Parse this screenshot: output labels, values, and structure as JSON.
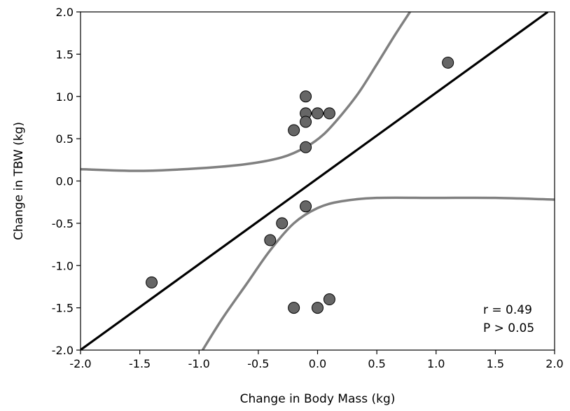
{
  "chart_data": {
    "type": "scatter",
    "title": "",
    "xlabel": "Change in Body Mass (kg)",
    "ylabel": "Change in TBW (kg)",
    "xlim": [
      -2.0,
      2.0
    ],
    "ylim": [
      -2.0,
      2.0
    ],
    "x_ticks": [
      "-2.0",
      "-1.5",
      "-1.0",
      "-0.5",
      "0.0",
      "0.5",
      "1.0",
      "1.5",
      "2.0"
    ],
    "y_ticks": [
      "2.0",
      "1.5",
      "1.0",
      "0.5",
      "0.0",
      "-0.5",
      "-1.0",
      "-1.5",
      "-2.0"
    ],
    "grid": false,
    "points": [
      {
        "x": -1.4,
        "y": -1.2
      },
      {
        "x": -0.4,
        "y": -0.7
      },
      {
        "x": -0.3,
        "y": -0.5
      },
      {
        "x": -0.2,
        "y": -1.5
      },
      {
        "x": -0.2,
        "y": 0.6
      },
      {
        "x": -0.1,
        "y": 1.0
      },
      {
        "x": -0.1,
        "y": 0.8
      },
      {
        "x": -0.1,
        "y": 0.7
      },
      {
        "x": -0.1,
        "y": 0.4
      },
      {
        "x": -0.1,
        "y": -0.3
      },
      {
        "x": 0.0,
        "y": 0.8
      },
      {
        "x": 0.0,
        "y": -1.5
      },
      {
        "x": 0.1,
        "y": 0.8
      },
      {
        "x": 0.1,
        "y": -1.4
      },
      {
        "x": 1.1,
        "y": 1.4
      }
    ],
    "regression": {
      "slope": 1.014,
      "intercept": 0.03
    },
    "confidence_upper": [
      [
        -2.0,
        0.14
      ],
      [
        -1.5,
        0.12
      ],
      [
        -1.0,
        0.15
      ],
      [
        -0.6,
        0.2
      ],
      [
        -0.3,
        0.28
      ],
      [
        -0.1,
        0.4
      ],
      [
        0.05,
        0.55
      ],
      [
        0.2,
        0.78
      ],
      [
        0.35,
        1.05
      ],
      [
        0.5,
        1.38
      ],
      [
        0.65,
        1.72
      ],
      [
        0.78,
        2.0
      ]
    ],
    "confidence_lower": [
      [
        -0.97,
        -2.0
      ],
      [
        -0.8,
        -1.62
      ],
      [
        -0.6,
        -1.22
      ],
      [
        -0.4,
        -0.82
      ],
      [
        -0.2,
        -0.5
      ],
      [
        0.0,
        -0.32
      ],
      [
        0.2,
        -0.24
      ],
      [
        0.5,
        -0.2
      ],
      [
        1.0,
        -0.2
      ],
      [
        1.5,
        -0.2
      ],
      [
        2.0,
        -0.22
      ]
    ],
    "annotations": [
      "r = 0.49",
      "P > 0.05"
    ],
    "colors": {
      "marker_fill": "#666666",
      "marker_stroke": "#000000",
      "regression_line": "#000000",
      "confidence_band": "#808080"
    }
  }
}
